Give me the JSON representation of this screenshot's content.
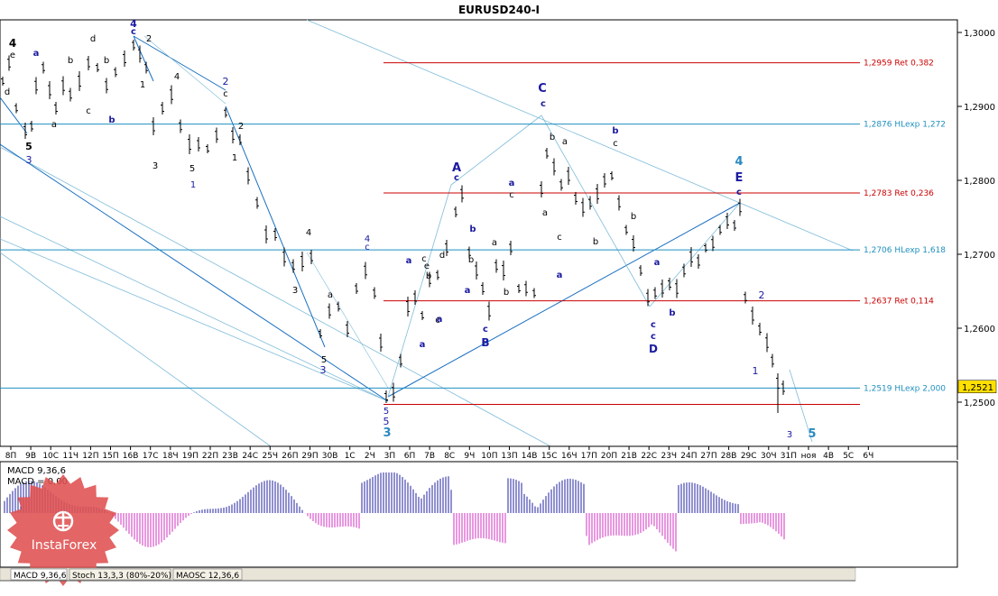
{
  "window_title": "EURUSD240-I",
  "price_axis": {
    "labels": [
      "1,3000",
      "1,2900",
      "1,2800",
      "1,2700",
      "1,2600",
      "1,2500"
    ],
    "values": [
      1.3,
      1.29,
      1.28,
      1.27,
      1.26,
      1.25
    ],
    "range": [
      1.2445,
      1.3035
    ],
    "current_price": "1,2521",
    "current_value": 1.2521
  },
  "time_axis": {
    "labels": [
      "8П",
      "9В",
      "10С",
      "11Ч",
      "12П",
      "15П",
      "16В",
      "17С",
      "18Ч",
      "19П",
      "22П",
      "23В",
      "24С",
      "25Ч",
      "26П",
      "29П",
      "30В",
      "1С",
      "2Ч",
      "3П",
      "6П",
      "7В",
      "8С",
      "9Ч",
      "10П",
      "13П",
      "14В",
      "15С",
      "16Ч",
      "17П",
      "20П",
      "21В",
      "22С",
      "23Ч",
      "24П",
      "27П",
      "28В",
      "29С",
      "30Ч",
      "31П",
      "ноя",
      "4В",
      "5С",
      "6Ч"
    ]
  },
  "levels": [
    {
      "label": "1,2959 Ret 0,382",
      "value": 1.2959,
      "color": "#cc0000",
      "kind": "ret"
    },
    {
      "label": "1,2876 HLexp 1,272",
      "value": 1.2876,
      "color": "#1e90c0",
      "kind": "exp"
    },
    {
      "label": "1,2783 Ret 0,236",
      "value": 1.2783,
      "color": "#cc0000",
      "kind": "ret"
    },
    {
      "label": "1,2706 HLexp 1,618",
      "value": 1.2706,
      "color": "#1e90c0",
      "kind": "exp"
    },
    {
      "label": "1,2637 Ret 0,114",
      "value": 1.2637,
      "color": "#cc0000",
      "kind": "ret"
    },
    {
      "label": "1,2519 HLexp 2,000",
      "value": 1.2519,
      "color": "#1e90c0",
      "kind": "exp"
    },
    {
      "label": "",
      "value": 1.2497,
      "color": "#cc0000",
      "kind": "ret"
    }
  ],
  "wave_labels": {
    "top_left_4": "4",
    "top_left_e": "e",
    "d1": "d",
    "w5a": "5",
    "w3a": "3",
    "a1": "a",
    "a2": "a",
    "c1": "c",
    "b1": "b",
    "d2": "d",
    "b2": "b",
    "b3": "b",
    "w4": "4",
    "c2": "c",
    "w2a": "2",
    "w1a": "1",
    "w4b": "4",
    "w3b": "3",
    "w5b": "5",
    "w1b": "1",
    "w2b": "2",
    "c3": "c",
    "w2c": "2",
    "w1c": "1",
    "w4c": "4",
    "w3c": "3",
    "a3": "a",
    "w4d": "4",
    "c4": "c",
    "w5c": "5",
    "w3d": "3",
    "w5d": "5",
    "w5e": "5",
    "w3e": "3",
    "A": "A",
    "c5": "c",
    "a4": "a",
    "d3": "d",
    "c6": "c",
    "b4": "b",
    "a5": "a",
    "a6": "a",
    "e1": "e",
    "c7": "c",
    "b5": "b",
    "a7": "a",
    "c8": "c",
    "B": "B",
    "b6": "b",
    "a8": "a",
    "c9": "c",
    "a9": "a",
    "b7": "b",
    "C": "C",
    "c10": "c",
    "b8": "b",
    "a10": "a",
    "c11": "c",
    "a11": "a",
    "a12": "a",
    "b9": "b",
    "c12": "c",
    "b10": "b",
    "b11": "b",
    "a13": "a",
    "b12": "b",
    "c13": "c",
    "c14": "c",
    "D": "D",
    "w4e": "4",
    "E": "E",
    "c15": "c",
    "w2d": "2",
    "w1d": "1",
    "w3f": "3",
    "w5f": "5"
  },
  "macd": {
    "title": "MACD 9,36,6",
    "line_label": "MACD = 0,00"
  },
  "indicator_tabs": [
    "MACD 9,36,6",
    "Stoch 13,3,3 (80%-20%)",
    "MAOSC 12,36,6"
  ],
  "watermark": "InstaForex",
  "colors": {
    "ret_line": "#cc0000",
    "exp_line": "#1e90c0",
    "trend_light": "#7fbcd9",
    "trend_dark": "#1a6fc0",
    "wave_dark": "#1a1aa0",
    "macd_pos": "#2020a0",
    "macd_neg": "#d030c0",
    "watermark": "#e05050",
    "price_badge": "#ffe000"
  }
}
